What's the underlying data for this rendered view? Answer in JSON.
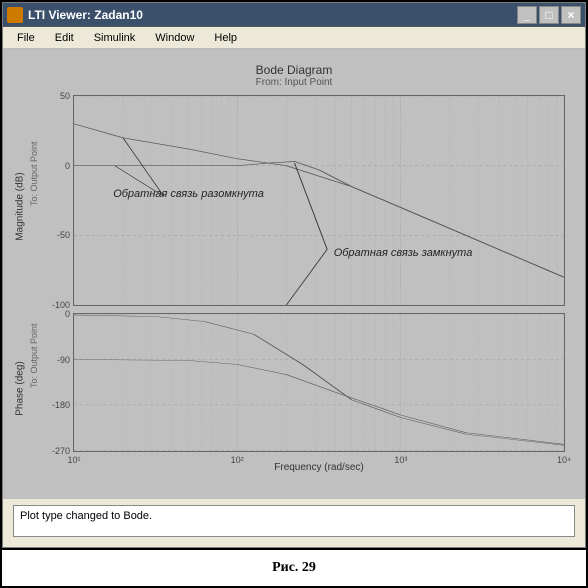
{
  "window": {
    "title": "LTI Viewer: Zadan10",
    "buttons": {
      "min": "_",
      "max": "□",
      "close": "×"
    }
  },
  "menu": {
    "items": [
      "File",
      "Edit",
      "Simulink",
      "Window",
      "Help"
    ]
  },
  "chart": {
    "title": "Bode Diagram",
    "subtitle": "From: Input Point",
    "xlabel": "Frequency (rad/sec)",
    "xlim_log": [
      1,
      4
    ],
    "xticks": [
      {
        "pos": 0.0,
        "label": "10¹"
      },
      {
        "pos": 0.333,
        "label": "10²"
      },
      {
        "pos": 0.667,
        "label": "10³"
      },
      {
        "pos": 1.0,
        "label": "10⁴"
      }
    ],
    "grid_color": "#888888",
    "bg_color": "#c0c0c0",
    "line_color": "#555555",
    "mag": {
      "ylabel": "Magnitude (dB)",
      "ysublabel": "To: Output Point",
      "ylim": [
        -100,
        50
      ],
      "yticks": [
        50,
        0,
        -50,
        -100
      ],
      "series": {
        "open": [
          [
            1,
            30
          ],
          [
            1.3,
            20
          ],
          [
            1.7,
            12
          ],
          [
            2,
            5
          ],
          [
            2.3,
            0
          ],
          [
            2.7,
            -15
          ],
          [
            3,
            -30
          ],
          [
            3.5,
            -55
          ],
          [
            4,
            -80
          ]
        ],
        "closed": [
          [
            1,
            0
          ],
          [
            1.6,
            0
          ],
          [
            2,
            0
          ],
          [
            2.2,
            2
          ],
          [
            2.35,
            3
          ],
          [
            2.5,
            -3
          ],
          [
            2.7,
            -15
          ],
          [
            3,
            -30
          ],
          [
            3.5,
            -55
          ],
          [
            4,
            -80
          ]
        ]
      }
    },
    "phase": {
      "ylabel": "Phase (deg)",
      "ysublabel": "To: Output Point",
      "ylim": [
        -270,
        0
      ],
      "yticks": [
        0,
        -90,
        -180,
        -270
      ],
      "series": {
        "open": [
          [
            1,
            -90
          ],
          [
            1.7,
            -92
          ],
          [
            2,
            -100
          ],
          [
            2.3,
            -120
          ],
          [
            2.6,
            -155
          ],
          [
            3,
            -200
          ],
          [
            3.4,
            -235
          ],
          [
            4,
            -258
          ]
        ],
        "closed": [
          [
            1,
            -2
          ],
          [
            1.5,
            -5
          ],
          [
            1.8,
            -15
          ],
          [
            2.1,
            -40
          ],
          [
            2.4,
            -100
          ],
          [
            2.7,
            -170
          ],
          [
            3,
            -205
          ],
          [
            3.4,
            -238
          ],
          [
            4,
            -260
          ]
        ]
      }
    },
    "annotations": {
      "open_label": "Обратная связь разомкнута",
      "closed_label": "Обратная связь замкнута"
    }
  },
  "status": {
    "text": "Plot type changed to Bode."
  },
  "caption": "Рис. 29"
}
